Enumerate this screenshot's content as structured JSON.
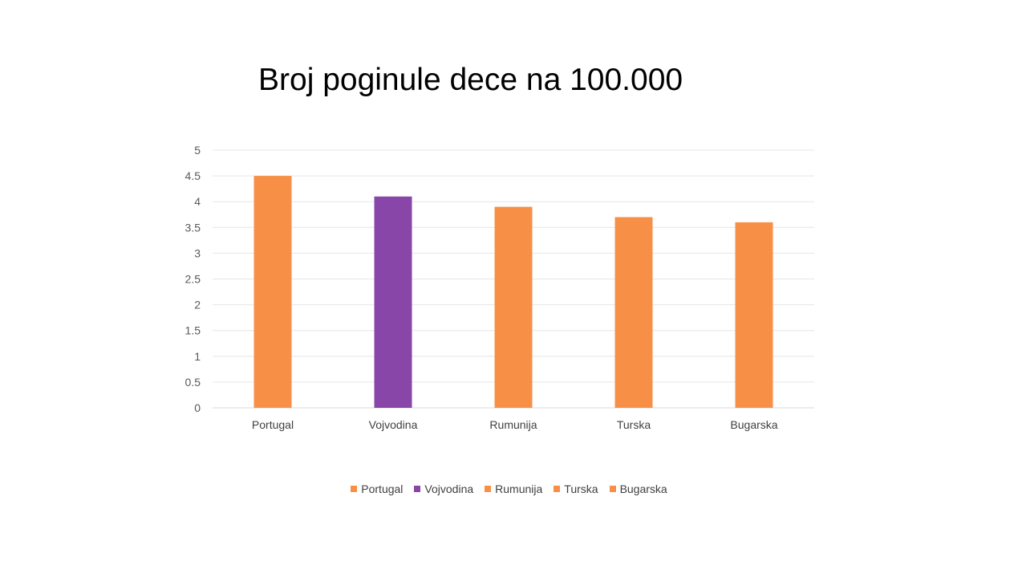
{
  "chart_data": {
    "type": "bar",
    "title": "Broj poginule dece na 100.000",
    "categories": [
      "Portugal",
      "Vojvodina",
      "Rumunija",
      "Turska",
      "Bugarska"
    ],
    "values": [
      4.5,
      4.1,
      3.9,
      3.7,
      3.6
    ],
    "colors": [
      "#F79046",
      "#8846A8",
      "#F79046",
      "#F79046",
      "#F79046"
    ],
    "ylim": [
      0,
      5
    ],
    "yticks": [
      0,
      0.5,
      1,
      1.5,
      2,
      2.5,
      3,
      3.5,
      4,
      4.5,
      5
    ],
    "grid": true,
    "legend_position": "bottom",
    "xlabel": "",
    "ylabel": ""
  }
}
